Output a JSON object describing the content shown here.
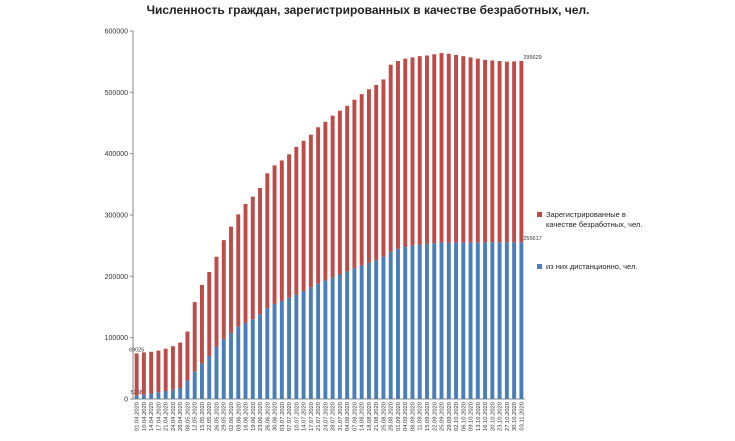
{
  "chart_data": {
    "type": "stacked_bar",
    "title": "Численность граждан, зарегистрированных в качестве безработных, чел.",
    "categories": [
      "01.04.2020",
      "10.04.2020",
      "14.04.2020",
      "17.04.2020",
      "21.04.2020",
      "24.04.2020",
      "28.04.2020",
      "08.05.2020",
      "12.05.2020",
      "15.05.2020",
      "22.05.2020",
      "26.05.2020",
      "29.05.2020",
      "02.06.2020",
      "09.06.2020",
      "16.06.2020",
      "19.06.2020",
      "23.06.2020",
      "26.06.2020",
      "30.06.2020",
      "03.07.2020",
      "07.07.2020",
      "10.07.2020",
      "14.07.2020",
      "17.07.2020",
      "21.07.2020",
      "24.07.2020",
      "28.07.2020",
      "31.07.2020",
      "04.08.2020",
      "07.08.2020",
      "14.08.2020",
      "18.08.2020",
      "21.08.2020",
      "25.08.2020",
      "28.08.2020",
      "01.09.2020",
      "04.09.2020",
      "08.09.2020",
      "11.09.2020",
      "15.09.2020",
      "22.09.2020",
      "25.09.2020",
      "29.09.2020",
      "02.10.2020",
      "06.10.2020",
      "09.10.2020",
      "13.10.2020",
      "16.10.2020",
      "20.10.2020",
      "23.10.2020",
      "27.10.2020",
      "30.10.2020",
      "03.11.2020"
    ],
    "series": [
      {
        "name": "из них дистанционно, чел.",
        "color": "#4a7ebb",
        "values": [
          5238,
          7000,
          9000,
          11000,
          13000,
          15000,
          18000,
          30000,
          45000,
          58000,
          70000,
          85000,
          98000,
          108000,
          118000,
          124000,
          130000,
          138000,
          148000,
          155000,
          160000,
          165000,
          170000,
          176000,
          182000,
          188000,
          193000,
          198000,
          203000,
          208000,
          213000,
          218000,
          222000,
          226000,
          232000,
          240000,
          245000,
          248000,
          250000,
          252000,
          253000,
          254000,
          255000,
          255000,
          255500,
          255500,
          255500,
          255600,
          255600,
          255600,
          255600,
          255600,
          255610,
          255617
        ],
        "data_labels_at": [
          0,
          53
        ]
      },
      {
        "name": "Зарегистрированные в качестве безработных, чел.",
        "color": "#be4b48",
        "values": [
          69025,
          69000,
          68000,
          68000,
          69000,
          71000,
          74000,
          80000,
          113000,
          128000,
          137000,
          147000,
          161000,
          173000,
          183000,
          194000,
          200000,
          206000,
          220000,
          226000,
          229000,
          234000,
          241000,
          245000,
          249000,
          255000,
          259000,
          264000,
          267000,
          270000,
          275000,
          279000,
          283000,
          286000,
          289000,
          305000,
          306000,
          307000,
          307000,
          307000,
          307000,
          308000,
          309000,
          308000,
          305500,
          303500,
          301500,
          299400,
          297400,
          296400,
          295400,
          294400,
          294890,
          295629
        ],
        "data_labels_at": [
          0,
          53
        ]
      }
    ],
    "ylim": [
      0,
      600000
    ],
    "yticks": [
      0,
      100000,
      200000,
      300000,
      400000,
      500000,
      600000
    ],
    "grid": false,
    "legend": "right"
  }
}
